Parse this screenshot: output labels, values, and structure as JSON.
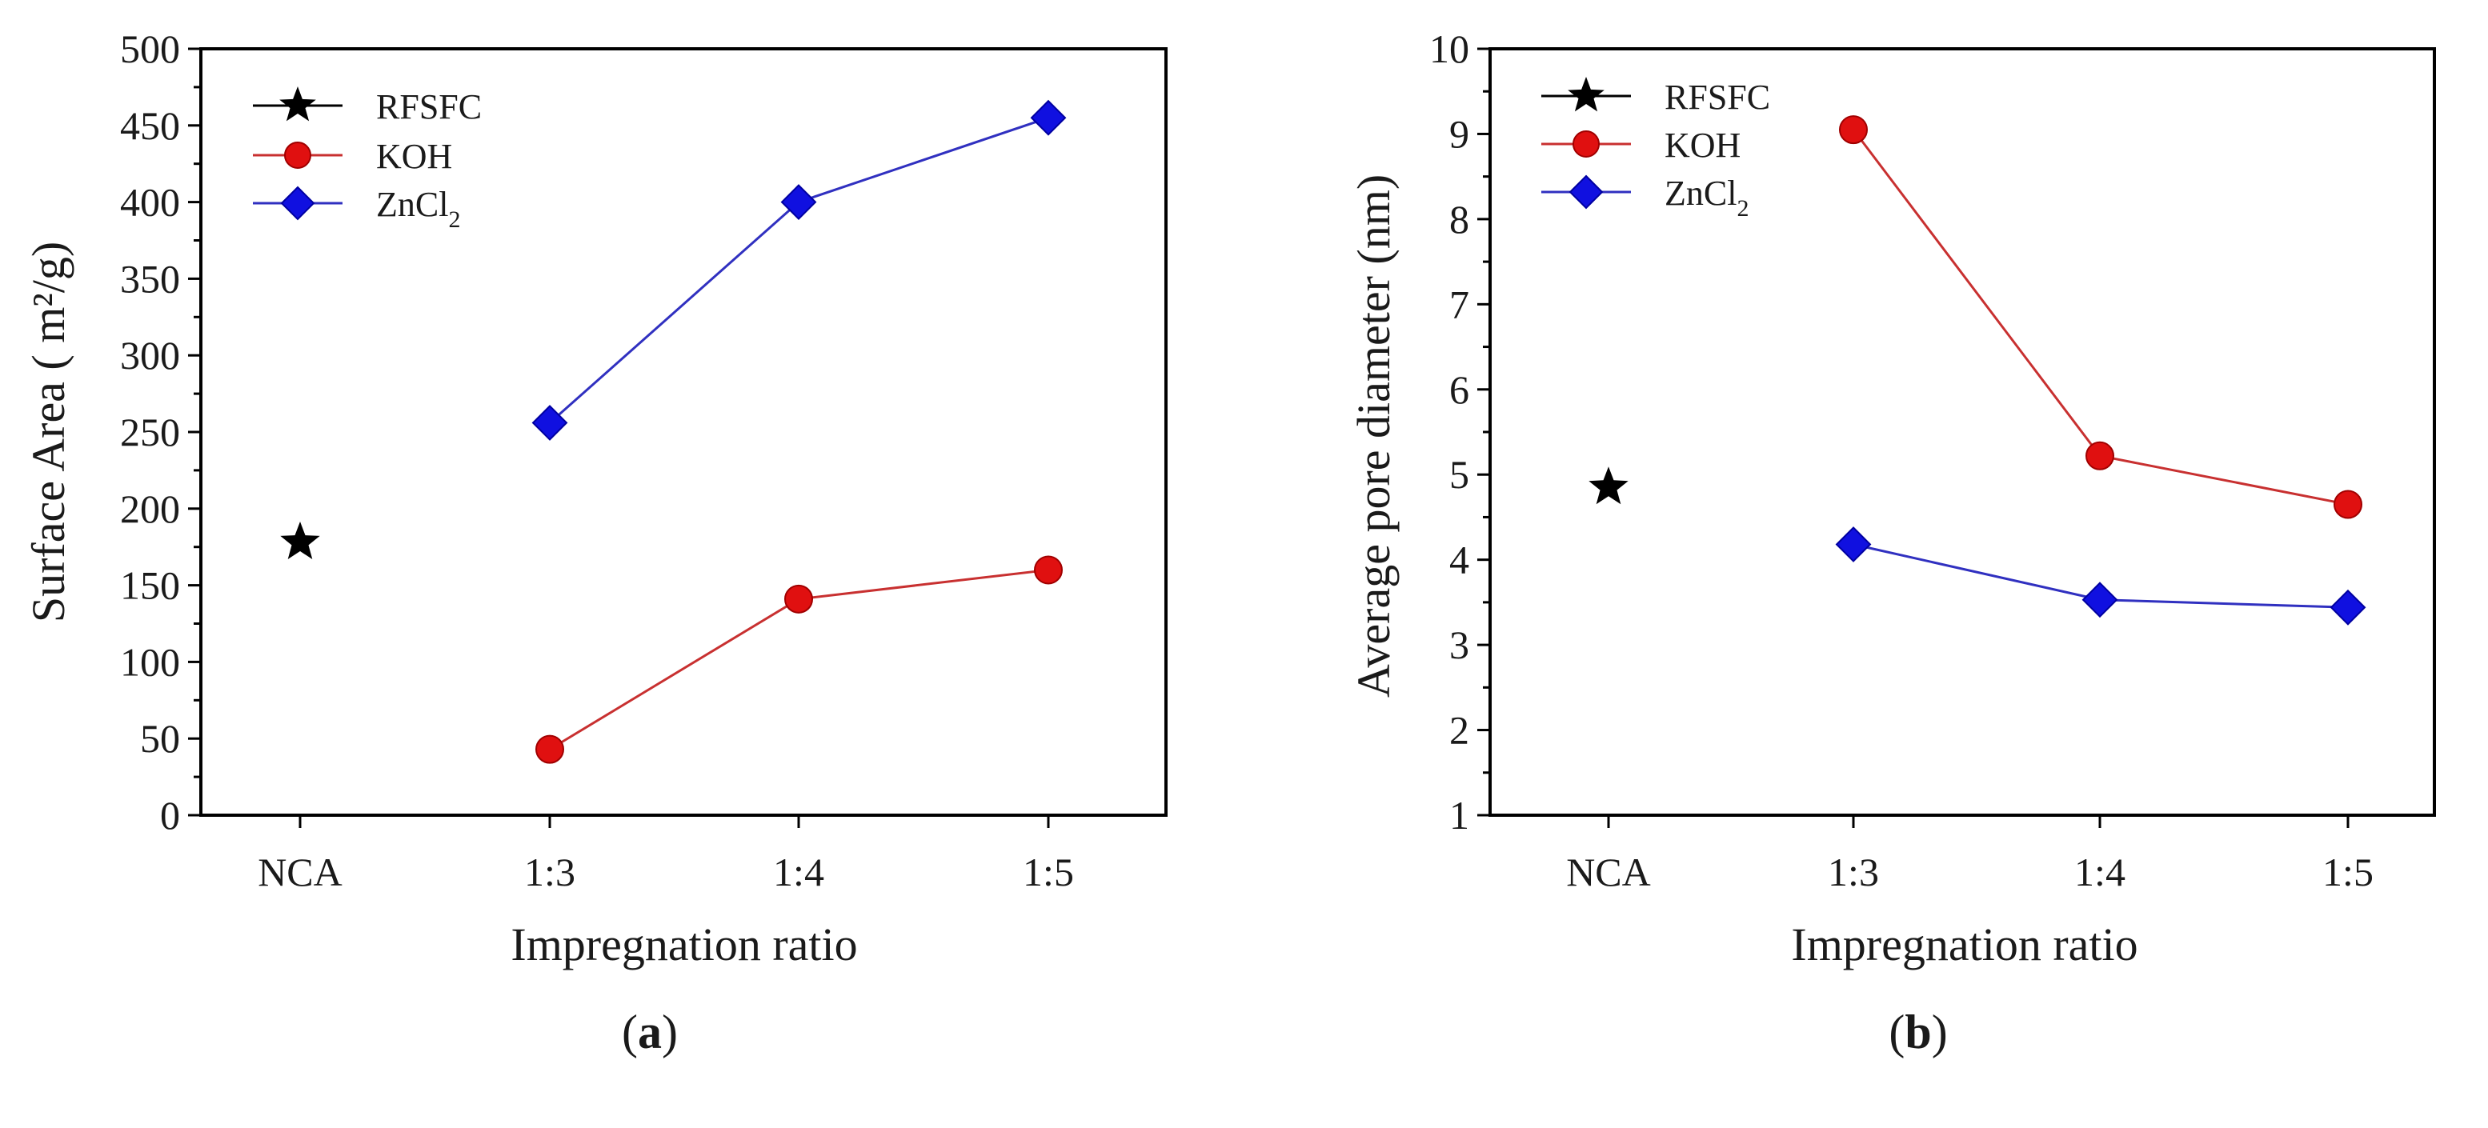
{
  "colors": {
    "RFSFC": "#000000",
    "KOH": "#e01010",
    "ZnCl2": "#1010e0",
    "KOH_line": "#c83030",
    "ZnCl2_line": "#3030c0",
    "axis": "#000000"
  },
  "chart_data": [
    {
      "panel": "a",
      "type": "line",
      "xlabel": "Impregnation ratio",
      "ylabel": "Surface Area ( m²/g)",
      "categories": [
        "NCA",
        "1:3",
        "1:4",
        "1:5"
      ],
      "ylim": [
        0,
        500
      ],
      "ytick_step": 50,
      "yticks": [
        "0",
        "50",
        "100",
        "150",
        "200",
        "250",
        "300",
        "350",
        "400",
        "450",
        "500"
      ],
      "legend_position": "top-left",
      "series": [
        {
          "name": "RFSFC",
          "marker": "star",
          "values": [
            178,
            null,
            null,
            null
          ]
        },
        {
          "name": "KOH",
          "label_text": "KOH",
          "marker": "circle",
          "values": [
            null,
            43,
            141,
            160
          ]
        },
        {
          "name": "ZnCl2",
          "label_main": "ZnCl",
          "label_sub": "2",
          "marker": "diamond",
          "values": [
            null,
            256,
            400,
            455
          ]
        }
      ]
    },
    {
      "panel": "b",
      "type": "line",
      "xlabel": "Impregnation ratio",
      "ylabel": "Average pore diameter (nm)",
      "categories": [
        "NCA",
        "1:3",
        "1:4",
        "1:5"
      ],
      "ylim": [
        1,
        10
      ],
      "ytick_step": 1,
      "yticks": [
        "1",
        "2",
        "3",
        "4",
        "5",
        "6",
        "7",
        "8",
        "9",
        "10"
      ],
      "legend_position": "top-left",
      "series": [
        {
          "name": "RFSFC",
          "marker": "star",
          "values": [
            4.85,
            null,
            null,
            null
          ]
        },
        {
          "name": "KOH",
          "label_text": "KOH",
          "marker": "circle",
          "values": [
            null,
            9.05,
            5.22,
            4.65
          ]
        },
        {
          "name": "ZnCl2",
          "label_main": "ZnCl",
          "label_sub": "2",
          "marker": "diamond",
          "values": [
            null,
            4.18,
            3.53,
            3.44
          ]
        }
      ]
    }
  ],
  "captions": [
    {
      "open": "(",
      "letter": "a",
      "close": ")"
    },
    {
      "open": "(",
      "letter": "b",
      "close": ")"
    }
  ]
}
